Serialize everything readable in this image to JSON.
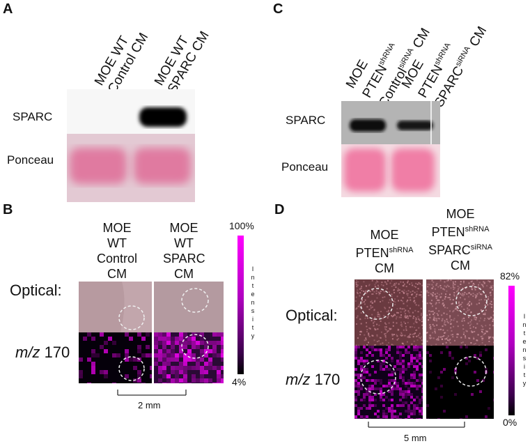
{
  "panels": {
    "A": {
      "letter": "A",
      "lanes": [
        {
          "line1": "MOE WT",
          "line2": "Control CM"
        },
        {
          "line1": "MOE WT",
          "line2": "SPARC CM"
        }
      ],
      "rows": [
        "SPARC",
        "Ponceau"
      ]
    },
    "C": {
      "letter": "C",
      "lanes": [
        {
          "line1": "MOE",
          "line2a": "PTEN",
          "line2sup": "shRNA",
          "line3a": "Control",
          "line3sup": "siRNA",
          "line3b": " CM"
        },
        {
          "line1": "MOE",
          "line2a": "PTEN",
          "line2sup": "shRNA",
          "line3a": "SPARC",
          "line3sup": "siRNA",
          "line3b": " CM"
        }
      ],
      "rows": [
        "SPARC",
        "Ponceau"
      ]
    },
    "B": {
      "letter": "B",
      "col1": [
        "MOE",
        "WT",
        "Control",
        "CM"
      ],
      "col2": [
        "MOE",
        "WT",
        "SPARC",
        "CM"
      ],
      "row_optical": "Optical:",
      "row_mz_italic": "m/z",
      "row_mz_value": " 170",
      "colorbar_max": "100%",
      "colorbar_min": "4%",
      "colorbar_label": "Intensity",
      "scale_label": "2 mm"
    },
    "D": {
      "letter": "D",
      "col1": {
        "l1": "MOE",
        "l2a": "PTEN",
        "l2sup": "shRNA",
        "l3": "CM"
      },
      "col2": {
        "l1": "MOE",
        "l2a": "PTEN",
        "l2sup": "shRNA",
        "l3a": "SPARC",
        "l3sup": "siRNA",
        "l4": "CM"
      },
      "row_optical": "Optical:",
      "row_mz_italic": "m/z",
      "row_mz_value": " 170",
      "colorbar_max": "82%",
      "colorbar_min": "0%",
      "colorbar_label": "Intensity",
      "scale_label": "5 mm"
    }
  },
  "colors": {
    "magenta": "#ff00ff",
    "ponceau": "#e58aa6",
    "optical_b": "#b89a9e",
    "optical_d": "#6b3a40"
  }
}
